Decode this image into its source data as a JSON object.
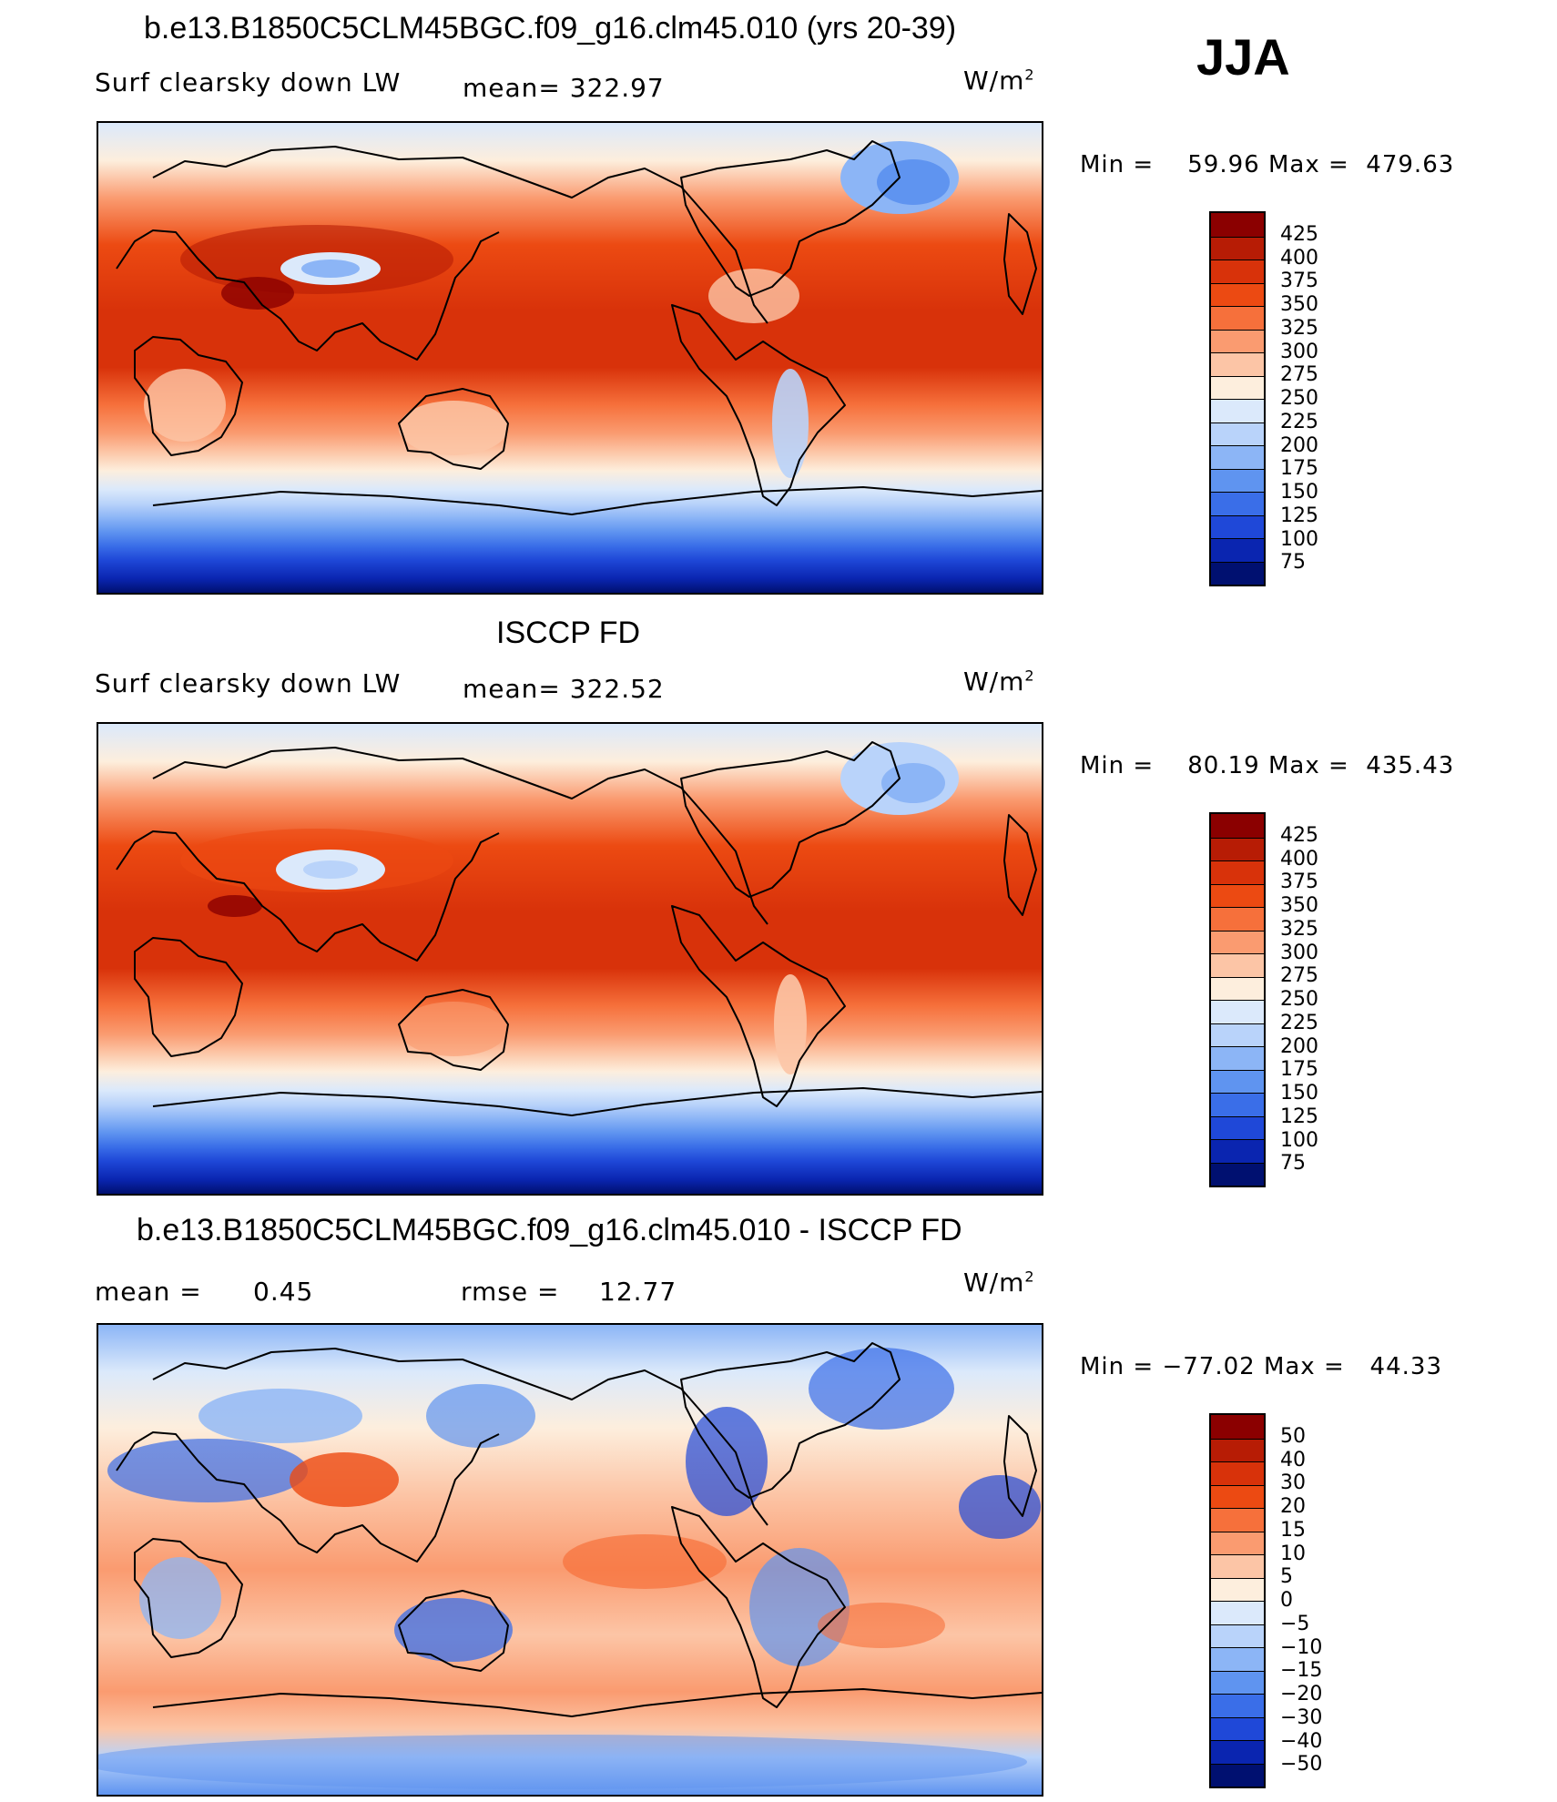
{
  "season": "JJA",
  "panels": [
    {
      "id": "model",
      "title": "b.e13.B1850C5CLM45BGC.f09_g16.clm45.010 (yrs 20-39)",
      "variable": "Surf clearsky down LW",
      "stat": "mean=  322.97",
      "units": "W/m",
      "units_sup": "2",
      "min_label": "Min =",
      "min_value": "59.96",
      "max_label": "Max =",
      "max_value": "479.63",
      "legend_levels": [
        "425",
        "400",
        "375",
        "350",
        "325",
        "300",
        "275",
        "250",
        "225",
        "200",
        "175",
        "150",
        "125",
        "100",
        "75"
      ],
      "legend_colors": [
        "#8b0000",
        "#b71c05",
        "#d8320a",
        "#ec4a12",
        "#f6703b",
        "#fa9b70",
        "#fcc5a6",
        "#fdeedd",
        "#dbe9fb",
        "#b9d3fa",
        "#8cb5f6",
        "#5f94f0",
        "#3a6ee8",
        "#1f48d8",
        "#0a25b0",
        "#001070"
      ]
    },
    {
      "id": "obs",
      "title": "ISCCP FD",
      "variable": "Surf clearsky down LW",
      "stat": "mean=  322.52",
      "units": "W/m",
      "units_sup": "2",
      "min_label": "Min =",
      "min_value": "80.19",
      "max_label": "Max =",
      "max_value": "435.43",
      "legend_levels": [
        "425",
        "400",
        "375",
        "350",
        "325",
        "300",
        "275",
        "250",
        "225",
        "200",
        "175",
        "150",
        "125",
        "100",
        "75"
      ],
      "legend_colors": [
        "#8b0000",
        "#b71c05",
        "#d8320a",
        "#ec4a12",
        "#f6703b",
        "#fa9b70",
        "#fcc5a6",
        "#fdeedd",
        "#dbe9fb",
        "#b9d3fa",
        "#8cb5f6",
        "#5f94f0",
        "#3a6ee8",
        "#1f48d8",
        "#0a25b0",
        "#001070"
      ]
    },
    {
      "id": "diff",
      "title": "b.e13.B1850C5CLM45BGC.f09_g16.clm45.010 - ISCCP FD",
      "stat_mean_label": "mean =",
      "stat_mean_value": "0.45",
      "stat_rmse_label": "rmse =",
      "stat_rmse_value": "12.77",
      "units": "W/m",
      "units_sup": "2",
      "min_label": "Min =",
      "min_value": "−77.02",
      "max_label": "Max =",
      "max_value": "44.33",
      "legend_levels": [
        "50",
        "40",
        "30",
        "20",
        "15",
        "10",
        "5",
        "0",
        "−5",
        "−10",
        "−15",
        "−20",
        "−30",
        "−40",
        "−50"
      ],
      "legend_colors": [
        "#8b0000",
        "#b71c05",
        "#d8320a",
        "#ec4a12",
        "#f6703b",
        "#fa9b70",
        "#fcc5a6",
        "#fdeedd",
        "#dbe9fb",
        "#b9d3fa",
        "#8cb5f6",
        "#5f94f0",
        "#3a6ee8",
        "#1f48d8",
        "#0a25b0",
        "#001070"
      ]
    }
  ]
}
